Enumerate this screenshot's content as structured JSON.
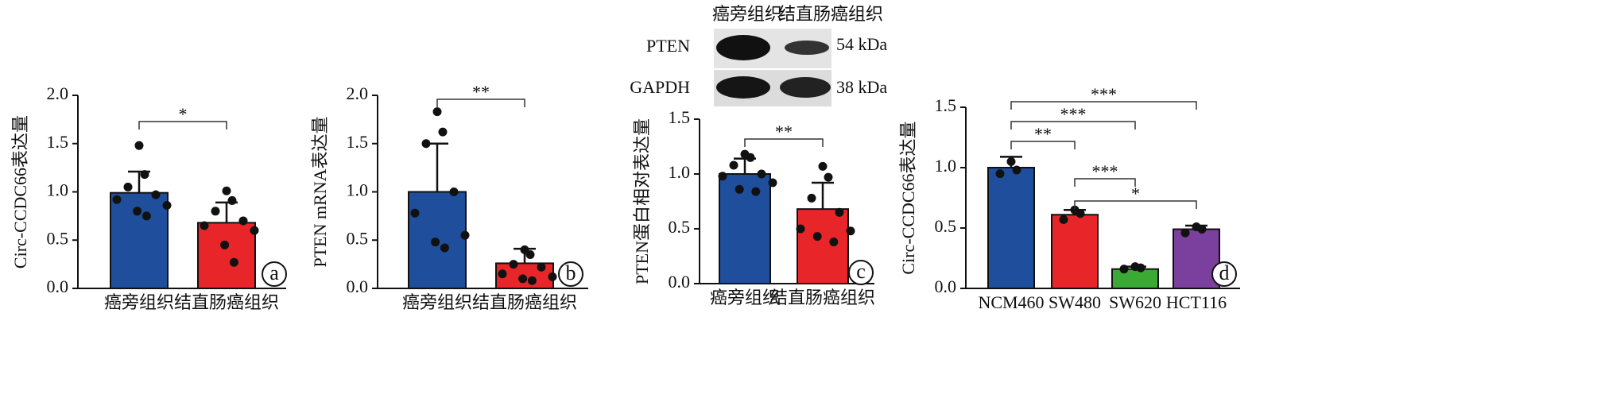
{
  "chart_data": [
    {
      "type": "bar",
      "panel_label": "a",
      "ylabel": "Circ-CCDC66表达量",
      "categories": [
        "癌旁组织",
        "结直肠癌组织"
      ],
      "values": [
        0.99,
        0.68
      ],
      "errors": [
        0.22,
        0.21
      ],
      "colors": [
        "#1f4e9c",
        "#e8262a"
      ],
      "points": [
        [
          1.48,
          1.18,
          1.05,
          0.97,
          0.92,
          0.86,
          0.8,
          0.75
        ],
        [
          1.01,
          0.91,
          0.8,
          0.7,
          0.65,
          0.6,
          0.45,
          0.27
        ]
      ],
      "ylim": [
        0,
        2
      ],
      "yticks": [
        {
          "value": 0,
          "label": "0.0"
        },
        {
          "value": 0.5,
          "label": "0.5"
        },
        {
          "value": 1,
          "label": "1.0"
        },
        {
          "value": 1.5,
          "label": "1.5"
        },
        {
          "value": 2,
          "label": "2.0"
        }
      ],
      "annotations": [
        "*"
      ]
    },
    {
      "type": "bar",
      "panel_label": "b",
      "ylabel": "PTEN mRNA表达量",
      "categories": [
        "癌旁组织",
        "结直肠癌组织"
      ],
      "values": [
        1.0,
        0.26
      ],
      "errors": [
        0.5,
        0.15
      ],
      "colors": [
        "#1f4e9c",
        "#e8262a"
      ],
      "points": [
        [
          1.83,
          1.62,
          1.5,
          1.0,
          0.78,
          0.55,
          0.48,
          0.42
        ],
        [
          0.4,
          0.35,
          0.25,
          0.22,
          0.15,
          0.12,
          0.1,
          0.08
        ]
      ],
      "ylim": [
        0,
        2
      ],
      "yticks": [
        {
          "value": 0,
          "label": "0.0"
        },
        {
          "value": 0.5,
          "label": "0.5"
        },
        {
          "value": 1,
          "label": "1.0"
        },
        {
          "value": 1.5,
          "label": "1.5"
        },
        {
          "value": 2,
          "label": "2.0"
        }
      ],
      "annotations": [
        "**"
      ]
    },
    {
      "type": "bar",
      "panel_label": "c",
      "ylabel": "PTEN蛋白相对表达量",
      "blot": {
        "lanes": [
          "癌旁组织",
          "结直肠癌组织"
        ],
        "rows": [
          {
            "protein": "PTEN",
            "size": "54 kDa"
          },
          {
            "protein": "GAPDH",
            "size": "38 kDa"
          }
        ]
      },
      "categories": [
        "癌旁组织",
        "结直肠癌组织"
      ],
      "values": [
        1.0,
        0.68
      ],
      "errors": [
        0.14,
        0.24
      ],
      "colors": [
        "#1f4e9c",
        "#e8262a"
      ],
      "points": [
        [
          1.18,
          1.15,
          1.08,
          1.0,
          0.98,
          0.92,
          0.86,
          0.84
        ],
        [
          1.07,
          0.97,
          0.78,
          0.65,
          0.5,
          0.48,
          0.43,
          0.38
        ]
      ],
      "ylim": [
        0,
        1.5
      ],
      "yticks": [
        {
          "value": 0,
          "label": "0.0"
        },
        {
          "value": 0.5,
          "label": "0.5"
        },
        {
          "value": 1,
          "label": "1.0"
        },
        {
          "value": 1.5,
          "label": "1.5"
        }
      ],
      "annotations": [
        "**"
      ]
    },
    {
      "type": "bar",
      "panel_label": "d",
      "ylabel": "Circ-CCDC66表达量",
      "categories": [
        "NCM460",
        "SW480",
        "SW620",
        "HCT116"
      ],
      "values": [
        1.0,
        0.61,
        0.16,
        0.49
      ],
      "errors": [
        0.09,
        0.04,
        0.02,
        0.03
      ],
      "colors": [
        "#1f4e9c",
        "#e8262a",
        "#3aaa35",
        "#7b3f9e"
      ],
      "points": [
        [
          1.05,
          0.98,
          0.95
        ],
        [
          0.65,
          0.62,
          0.57
        ],
        [
          0.18,
          0.17,
          0.16
        ],
        [
          0.51,
          0.49,
          0.46
        ]
      ],
      "ylim": [
        0,
        1.5
      ],
      "yticks": [
        {
          "value": 0,
          "label": "0.0"
        },
        {
          "value": 0.5,
          "label": "0.5"
        },
        {
          "value": 1,
          "label": "1.0"
        },
        {
          "value": 1.5,
          "label": "1.5"
        }
      ],
      "annotations": [
        "***",
        "***",
        "**",
        "***",
        "*"
      ]
    }
  ]
}
